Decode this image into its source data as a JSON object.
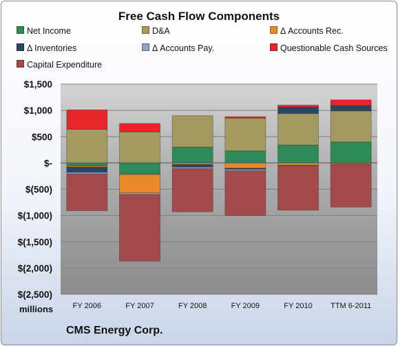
{
  "chart_data": {
    "type": "bar",
    "stacked": true,
    "title": "Free Cash Flow Components",
    "ylabel": "millions",
    "ylim": [
      -2500,
      1500
    ],
    "yticks": [
      1500,
      1000,
      500,
      0,
      -500,
      -1000,
      -1500,
      -2000,
      -2500
    ],
    "ytick_labels": [
      "$1,500",
      "$1,000",
      "$500",
      "$-",
      "$(500)",
      "$(1,000)",
      "$(1,500)",
      "$(2,000)",
      "$(2,500)"
    ],
    "categories": [
      "FY 2006",
      "FY 2007",
      "FY 2008",
      "FY 2009",
      "FY 2010",
      "TTM 6-2011"
    ],
    "legend_position": "top",
    "grid": true,
    "series": [
      {
        "name": "Net Income",
        "color": "#2e8b57",
        "values": [
          -60,
          -220,
          300,
          230,
          340,
          400
        ]
      },
      {
        "name": "D&A",
        "color": "#a39a62",
        "values": [
          640,
          590,
          600,
          620,
          600,
          590
        ]
      },
      {
        "name": "Δ Accounts Rec.",
        "color": "#e8892b",
        "values": [
          -20,
          -350,
          -30,
          -100,
          -40,
          -20
        ]
      },
      {
        "name": "Δ Inventories",
        "color": "#2c4466",
        "values": [
          -100,
          0,
          -50,
          -20,
          120,
          100
        ]
      },
      {
        "name": "Δ Accounts Pay.",
        "color": "#8fa3c2",
        "values": [
          -30,
          -30,
          -30,
          -30,
          -10,
          0
        ]
      },
      {
        "name": "Questionable Cash Sources",
        "color": "#e8252a",
        "values": [
          370,
          160,
          0,
          30,
          40,
          110
        ]
      },
      {
        "name": "Capital Expenditure",
        "color": "#a44a4c",
        "values": [
          -700,
          -1270,
          -820,
          -850,
          -850,
          -820
        ]
      }
    ]
  },
  "footer": {
    "company": "CMS Energy Corp."
  }
}
